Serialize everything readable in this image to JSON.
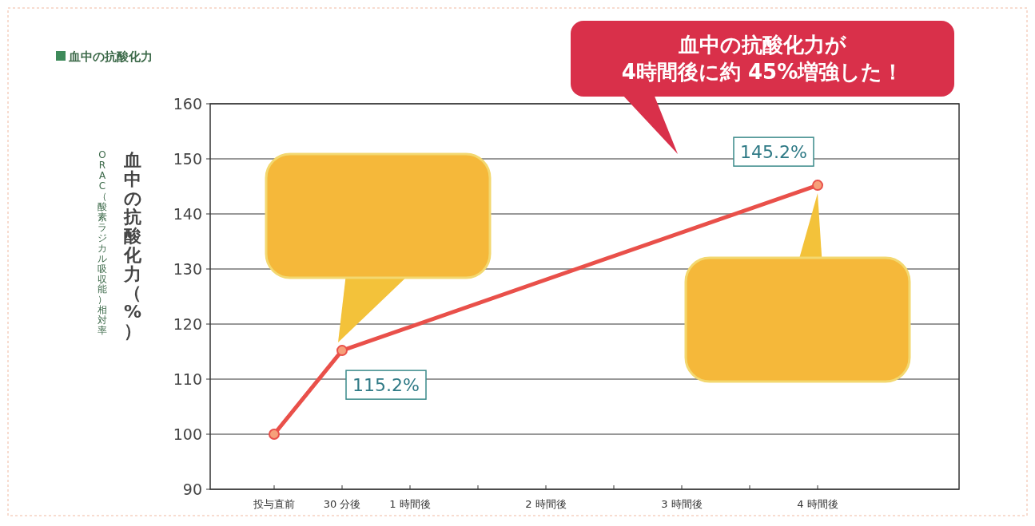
{
  "chart_data": {
    "type": "line",
    "title": "血中の抗酸化力",
    "ylabel": "血中の抗酸化力（%）",
    "annotations": [
      "血中の抗酸化力が\n4時間後に約 45%増強した！",
      "ORAC（酸素ラジカル吸収能）相対率"
    ],
    "categories": [
      "投与直前",
      "30 分後",
      "1 時間後",
      null,
      "2 時間後",
      null,
      "3 時間後",
      null,
      "4 時間後"
    ],
    "series": [
      {
        "color": "#e9504a",
        "x": [
          "投与直前",
          "30 分後",
          "4 時間後"
        ],
        "values": [
          100,
          115.2,
          145.2
        ],
        "value_labels": [
          null,
          "115.2%",
          "145.2%"
        ]
      }
    ],
    "ylim": [
      90,
      160
    ],
    "yticks": [
      90,
      100,
      110,
      120,
      130,
      140,
      150,
      160
    ],
    "grid": "y",
    "marker": "circle",
    "line_style": "solid"
  }
}
